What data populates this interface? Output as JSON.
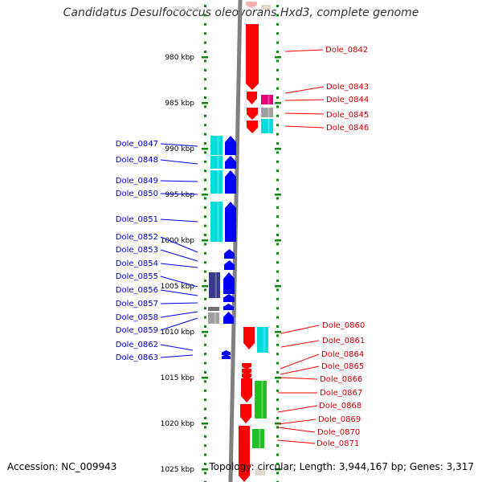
{
  "title": "Candidatus Desulfococcus oleovorans Hxd3, complete genome",
  "footer": {
    "accession": "Accession: NC_009943",
    "summary": "Topology: circular; Length: 3,944,167 bp; Genes: 3,317"
  },
  "colors": {
    "red": "#ff0000",
    "magenta": "#e0007c",
    "blue": "#0000ff",
    "cyan": "#00dcdc",
    "navy": "#3a3a8c",
    "grey": "#a0a0a0",
    "green": "#22c022",
    "tick": "#0a8a0a",
    "backbone": "#808080"
  },
  "scale": {
    "top_label": "975 kbp",
    "ticks": [
      {
        "label": "980 kbp",
        "kbp": 980
      },
      {
        "label": "985 kbp",
        "kbp": 985
      },
      {
        "label": "990 kbp",
        "kbp": 990
      },
      {
        "label": "995 kbp",
        "kbp": 995
      },
      {
        "label": "1000 kbp",
        "kbp": 1000
      },
      {
        "label": "1005 kbp",
        "kbp": 1005
      },
      {
        "label": "1010 kbp",
        "kbp": 1010
      },
      {
        "label": "1015 kbp",
        "kbp": 1015
      },
      {
        "label": "1020 kbp",
        "kbp": 1020
      },
      {
        "label": "1025 kbp",
        "kbp": 1025
      }
    ]
  },
  "genes_right": [
    {
      "name": "Dole_0842"
    },
    {
      "name": "Dole_0843"
    },
    {
      "name": "Dole_0844"
    },
    {
      "name": "Dole_0845"
    },
    {
      "name": "Dole_0846"
    },
    {
      "name": "Dole_0860"
    },
    {
      "name": "Dole_0861"
    },
    {
      "name": "Dole_0864"
    },
    {
      "name": "Dole_0865"
    },
    {
      "name": "Dole_0866"
    },
    {
      "name": "Dole_0867"
    },
    {
      "name": "Dole_0868"
    },
    {
      "name": "Dole_0869"
    },
    {
      "name": "Dole_0870"
    },
    {
      "name": "Dole_0871"
    }
  ],
  "genes_left": [
    {
      "name": "Dole_0847"
    },
    {
      "name": "Dole_0848"
    },
    {
      "name": "Dole_0849"
    },
    {
      "name": "Dole_0850"
    },
    {
      "name": "Dole_0851"
    },
    {
      "name": "Dole_0852"
    },
    {
      "name": "Dole_0853"
    },
    {
      "name": "Dole_0854"
    },
    {
      "name": "Dole_0855"
    },
    {
      "name": "Dole_0856"
    },
    {
      "name": "Dole_0857"
    },
    {
      "name": "Dole_0858"
    },
    {
      "name": "Dole_0859"
    },
    {
      "name": "Dole_0862"
    },
    {
      "name": "Dole_0863"
    }
  ]
}
